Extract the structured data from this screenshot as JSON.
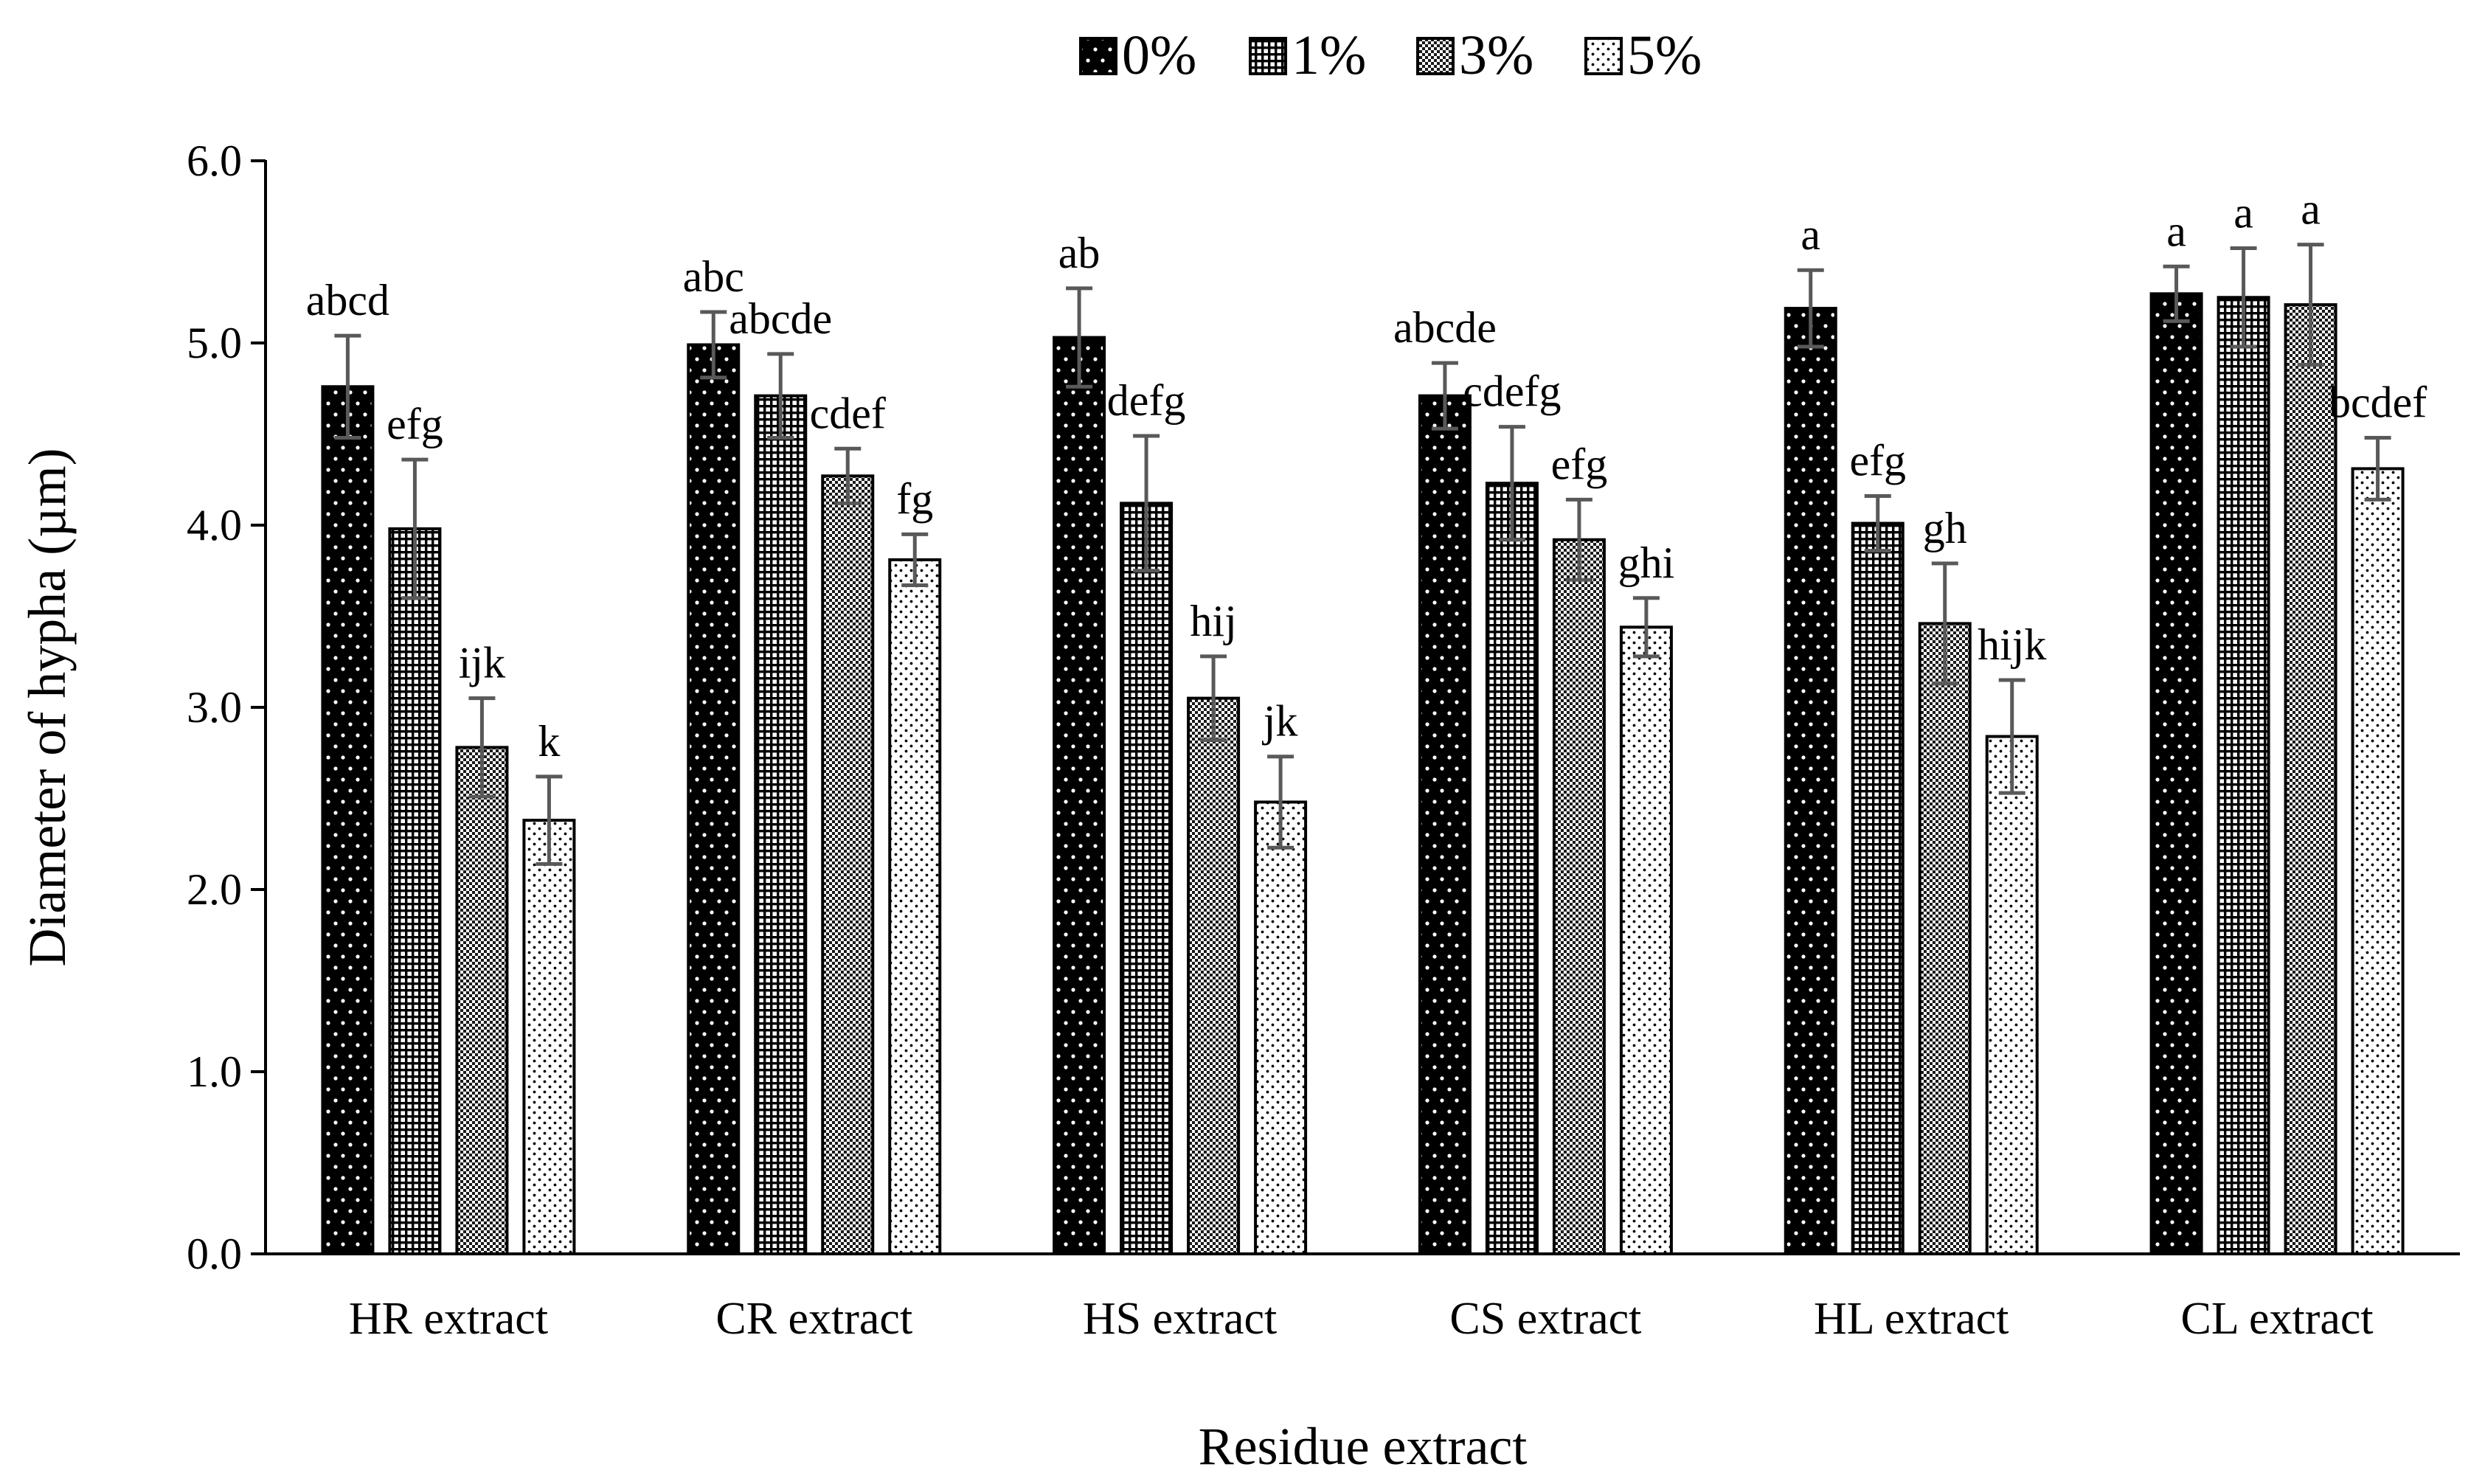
{
  "chart_data": {
    "type": "bar",
    "title": "",
    "xlabel": "Residue extract",
    "ylabel": "Diameter of hypha (µm)",
    "ylim": [
      0,
      6
    ],
    "yticks": [
      "0.0",
      "1.0",
      "2.0",
      "3.0",
      "4.0",
      "5.0",
      "6.0"
    ],
    "legend_position": "top-center",
    "categories": [
      "HR extract",
      "CR extract",
      "HS extract",
      "CS extract",
      "HL extract",
      "CL extract"
    ],
    "series": [
      {
        "name": "0%",
        "pattern": "dots-on-black",
        "values": [
          4.76,
          4.99,
          5.03,
          4.71,
          5.19,
          5.27
        ],
        "errors": [
          0.28,
          0.18,
          0.27,
          0.18,
          0.21,
          0.15
        ],
        "letters": [
          "abcd",
          "abc",
          "ab",
          "abcde",
          "a",
          "a"
        ]
      },
      {
        "name": "1%",
        "pattern": "fine-grid",
        "values": [
          3.98,
          4.71,
          4.12,
          4.23,
          4.01,
          5.25
        ],
        "errors": [
          0.38,
          0.23,
          0.37,
          0.31,
          0.15,
          0.27
        ],
        "letters": [
          "efg",
          "abcde",
          "defg",
          "cdefg",
          "efg",
          "a"
        ]
      },
      {
        "name": "3%",
        "pattern": "checker",
        "values": [
          2.78,
          4.27,
          3.05,
          3.92,
          3.46,
          5.21
        ],
        "errors": [
          0.27,
          0.15,
          0.23,
          0.22,
          0.33,
          0.33
        ],
        "letters": [
          "ijk",
          "cdef",
          "hij",
          "efg",
          "gh",
          "a"
        ]
      },
      {
        "name": "5%",
        "pattern": "sparse-dots",
        "values": [
          2.38,
          3.81,
          2.48,
          3.44,
          2.84,
          4.31
        ],
        "errors": [
          0.24,
          0.14,
          0.25,
          0.16,
          0.31,
          0.17
        ],
        "letters": [
          "k",
          "fg",
          "jk",
          "ghi",
          "hijk",
          "bcdef"
        ]
      }
    ]
  }
}
